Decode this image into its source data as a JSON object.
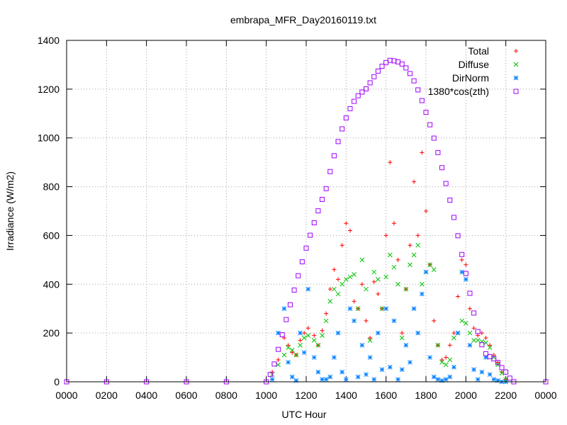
{
  "chart_data": {
    "type": "scatter",
    "title": "embrapa_MFR_Day20160119.txt",
    "xlabel": "UTC Hour",
    "ylabel": "Irradiance (W/m2)",
    "xlim": [
      0,
      2400
    ],
    "ylim": [
      0,
      1400
    ],
    "x_tick_labels": [
      "0000",
      "0200",
      "0400",
      "0600",
      "0800",
      "1000",
      "1200",
      "1400",
      "1600",
      "1800",
      "2000",
      "2200",
      "0000"
    ],
    "y_ticks": [
      0,
      200,
      400,
      600,
      800,
      1000,
      1200,
      1400
    ],
    "grid": true,
    "legend_position": "top-right",
    "series": [
      {
        "name": "Total",
        "marker": "+",
        "color": "#ff0000",
        "x": [
          1030,
          1060,
          1090,
          1110,
          1130,
          1150,
          1170,
          1190,
          1210,
          1240,
          1260,
          1280,
          1300,
          1320,
          1340,
          1360,
          1380,
          1400,
          1420,
          1440,
          1460,
          1480,
          1500,
          1520,
          1540,
          1560,
          1580,
          1600,
          1620,
          1640,
          1660,
          1680,
          1700,
          1720,
          1740,
          1760,
          1780,
          1800,
          1820,
          1840,
          1860,
          1880,
          1900,
          1920,
          1940,
          1960,
          1980,
          2000,
          2020,
          2040,
          2060,
          2080,
          2100,
          2120,
          2140,
          2160,
          2180,
          2200
        ],
        "y": [
          40,
          90,
          180,
          150,
          120,
          110,
          170,
          200,
          220,
          190,
          150,
          210,
          280,
          380,
          460,
          420,
          560,
          650,
          620,
          330,
          300,
          400,
          250,
          180,
          410,
          360,
          300,
          600,
          900,
          650,
          500,
          200,
          380,
          560,
          820,
          600,
          940,
          700,
          480,
          250,
          150,
          90,
          100,
          150,
          200,
          350,
          500,
          480,
          300,
          220,
          190,
          200,
          180,
          150,
          110,
          80,
          40,
          10
        ]
      },
      {
        "name": "Diffuse",
        "marker": "x",
        "color": "#00c000",
        "x": [
          1030,
          1060,
          1090,
          1110,
          1130,
          1150,
          1170,
          1190,
          1210,
          1240,
          1260,
          1280,
          1300,
          1320,
          1340,
          1360,
          1380,
          1400,
          1420,
          1440,
          1460,
          1480,
          1500,
          1520,
          1540,
          1560,
          1580,
          1600,
          1620,
          1640,
          1660,
          1680,
          1700,
          1720,
          1740,
          1760,
          1780,
          1800,
          1820,
          1840,
          1860,
          1880,
          1900,
          1920,
          1940,
          1960,
          1980,
          2000,
          2020,
          2040,
          2060,
          2080,
          2100,
          2120,
          2140,
          2160,
          2180,
          2200
        ],
        "y": [
          30,
          70,
          110,
          140,
          130,
          110,
          150,
          180,
          190,
          170,
          150,
          190,
          250,
          330,
          380,
          360,
          400,
          420,
          430,
          440,
          300,
          500,
          380,
          170,
          450,
          420,
          300,
          430,
          520,
          470,
          400,
          180,
          380,
          480,
          520,
          560,
          400,
          450,
          480,
          460,
          150,
          80,
          70,
          90,
          180,
          200,
          250,
          240,
          200,
          170,
          170,
          165,
          160,
          140,
          100,
          70,
          35,
          10
        ]
      },
      {
        "name": "DirNorm",
        "marker": "*",
        "color": "#0080ff",
        "x": [
          1030,
          1060,
          1090,
          1110,
          1130,
          1150,
          1170,
          1190,
          1210,
          1240,
          1260,
          1280,
          1300,
          1320,
          1340,
          1360,
          1380,
          1400,
          1420,
          1440,
          1460,
          1480,
          1500,
          1520,
          1540,
          1560,
          1580,
          1600,
          1620,
          1640,
          1660,
          1680,
          1700,
          1720,
          1740,
          1760,
          1780,
          1800,
          1820,
          1840,
          1860,
          1880,
          1900,
          1920,
          1940,
          1960,
          1980,
          2000,
          2020,
          2040,
          2060,
          2080,
          2100,
          2120,
          2140,
          2160,
          2180,
          2200
        ],
        "y": [
          10,
          200,
          300,
          80,
          20,
          5,
          200,
          120,
          380,
          100,
          40,
          10,
          10,
          20,
          100,
          200,
          40,
          10,
          300,
          250,
          20,
          150,
          30,
          100,
          10,
          200,
          50,
          300,
          60,
          250,
          10,
          50,
          150,
          80,
          300,
          200,
          360,
          450,
          100,
          20,
          10,
          5,
          10,
          20,
          60,
          200,
          450,
          420,
          150,
          50,
          10,
          40,
          100,
          30,
          10,
          5,
          0,
          0
        ]
      },
      {
        "name": "1380*cos(zth)",
        "marker": "square",
        "color": "#a000ff",
        "x": [
          0,
          200,
          400,
          600,
          800,
          1000,
          1020,
          1040,
          1060,
          1080,
          1100,
          1120,
          1140,
          1160,
          1180,
          1200,
          1220,
          1240,
          1260,
          1280,
          1300,
          1320,
          1340,
          1360,
          1380,
          1400,
          1420,
          1440,
          1460,
          1480,
          1500,
          1520,
          1540,
          1560,
          1580,
          1600,
          1620,
          1640,
          1660,
          1680,
          1700,
          1720,
          1740,
          1760,
          1780,
          1800,
          1820,
          1840,
          1860,
          1880,
          1900,
          1920,
          1940,
          1960,
          1980,
          2000,
          2020,
          2040,
          2060,
          2080,
          2100,
          2120,
          2140,
          2160,
          2180,
          2200,
          2220,
          2240,
          2400
        ],
        "y": [
          0,
          0,
          0,
          0,
          0,
          0,
          30,
          73,
          133,
          193,
          255,
          316,
          376,
          435,
          492,
          548,
          601,
          652,
          701,
          748,
          792,
          862,
          927,
          985,
          1037,
          1082,
          1120,
          1150,
          1173,
          1188,
          1201,
          1226,
          1251,
          1274,
          1294,
          1309,
          1318,
          1316,
          1312,
          1303,
          1287,
          1264,
          1234,
          1197,
          1153,
          1105,
          1054,
          999,
          940,
          878,
          813,
          745,
          674,
          599,
          522,
          444,
          363,
          282,
          206,
          152,
          115,
          103,
          94,
          79,
          58,
          40,
          15,
          0,
          0
        ]
      }
    ]
  }
}
